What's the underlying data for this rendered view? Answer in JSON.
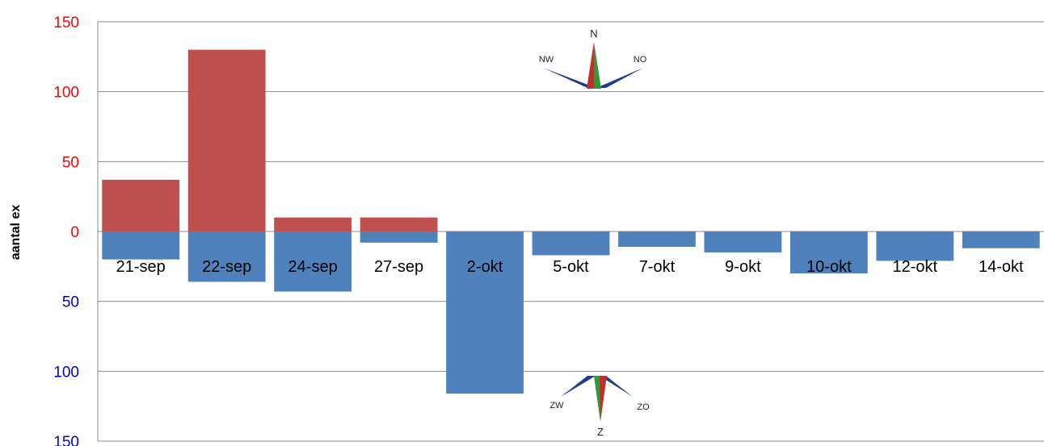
{
  "chart_data": {
    "type": "bar",
    "ylabel": "aantal ex",
    "categories": [
      "21-sep",
      "22-sep",
      "24-sep",
      "27-sep",
      "2-okt",
      "5-okt",
      "7-okt",
      "9-okt",
      "10-okt",
      "12-okt",
      "14-okt"
    ],
    "series": [
      {
        "direction": "north",
        "color": "#c0504d",
        "values": [
          37,
          130,
          10,
          10,
          0,
          0,
          0,
          0,
          0,
          0,
          0
        ]
      },
      {
        "direction": "south",
        "color": "#4f81bd",
        "values": [
          20,
          36,
          43,
          8,
          116,
          17,
          11,
          15,
          30,
          21,
          12
        ]
      }
    ],
    "ylim_north": [
      0,
      150
    ],
    "ylim_south": [
      0,
      150
    ],
    "yticks_north": [
      "150",
      "100",
      "50",
      "0"
    ],
    "yticks_south": [
      "50",
      "100",
      "150"
    ],
    "north_tick_color": "#ff0000",
    "south_tick_color": "#0000cc",
    "grid": true
  },
  "compass_north": {
    "center": "N",
    "left": "NW",
    "right": "NO"
  },
  "compass_south": {
    "center": "Z",
    "left": "ZW",
    "right": "ZO"
  }
}
